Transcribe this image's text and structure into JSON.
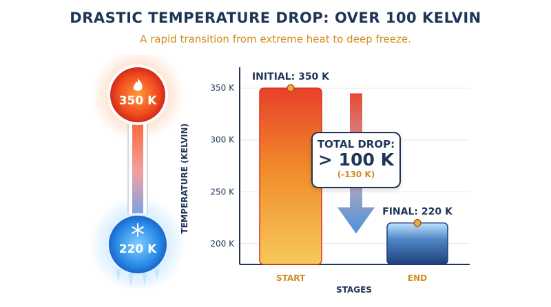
{
  "header": {
    "title": "Drastic Temperature Drop: Over 100 Kelvin",
    "subtitle": "A rapid transition from extreme heat to deep freeze."
  },
  "thermometer": {
    "hot_label": "350 K",
    "cold_label": "220 K",
    "hot_icon": "flame-icon",
    "cold_icon": "snowflake-icon"
  },
  "callout": {
    "line1": "TOTAL DROP:",
    "line2": "> 100 K",
    "line3": "(-130 K)"
  },
  "colors": {
    "navy": "#1d3557",
    "accent": "#d28c1e",
    "hot": "#e53a22",
    "cold": "#2a8ae8"
  },
  "chart_data": {
    "type": "bar",
    "categories": [
      "START",
      "END"
    ],
    "values": [
      350,
      220
    ],
    "data_labels": [
      "INITIAL: 350 K",
      "FINAL: 220 K"
    ],
    "ylabel": "TEMPERATURE (KELVIN)",
    "xlabel": "STAGES",
    "yticks": [
      200,
      250,
      300,
      350
    ],
    "ytick_labels": [
      "200 K",
      "250 K",
      "300 K",
      "350 K"
    ],
    "ylim": [
      180,
      370
    ],
    "grid": true
  }
}
